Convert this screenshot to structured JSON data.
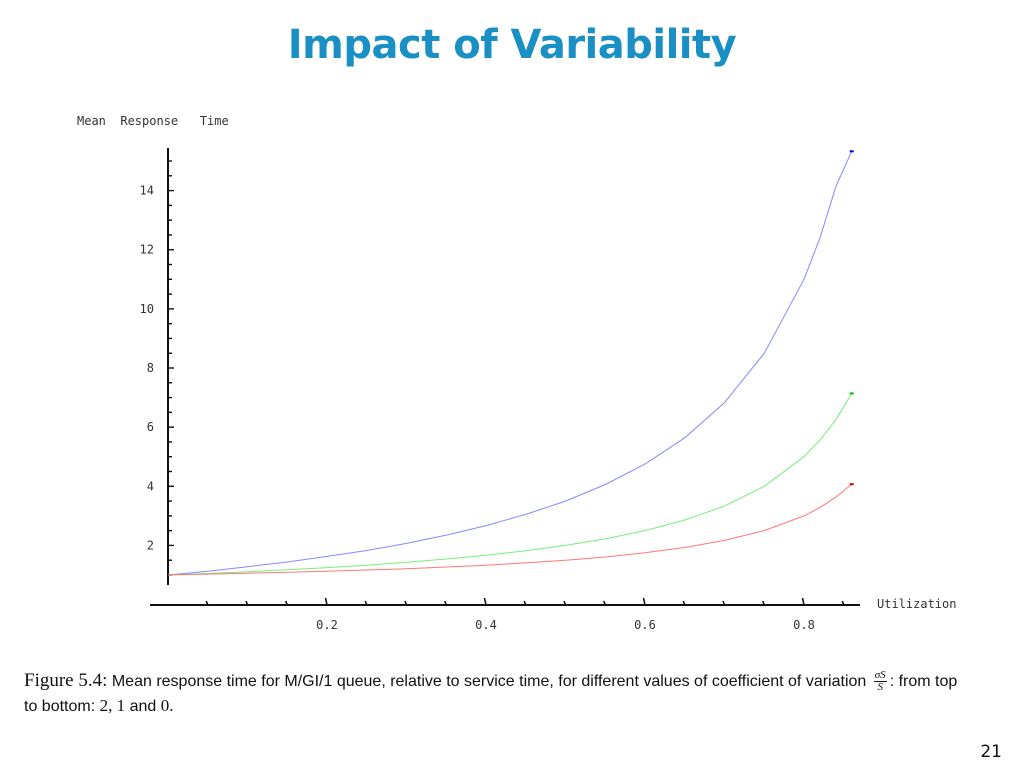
{
  "slide": {
    "title": "Impact of Variability",
    "page_number": "21"
  },
  "caption": {
    "figure_label": "Figure 5.4:",
    "text_part1": "Mean response time for M/GI/1 queue, relative to service time, for different values of coefficient of variation",
    "frac_num": "σS",
    "frac_den": "S",
    "text_part2": ": from top to bottom:",
    "values": "2, 1",
    "and_word": "and",
    "last_value": "0."
  },
  "chart_data": {
    "type": "line",
    "xlabel": "Utilization",
    "ylabel": "Mean  Response   Time",
    "xlim": [
      0,
      0.9
    ],
    "ylim": [
      0,
      15.5
    ],
    "x_ticks": [
      0.2,
      0.4,
      0.6,
      0.8
    ],
    "x_tick_labels": [
      "0.2",
      "0.4",
      "0.6",
      "0.8"
    ],
    "y_ticks": [
      2,
      4,
      6,
      8,
      10,
      12,
      14
    ],
    "y_tick_labels": [
      "2",
      "4",
      "6",
      "8",
      "10",
      "12",
      "14"
    ],
    "x": [
      0,
      0.05,
      0.1,
      0.15,
      0.2,
      0.25,
      0.3,
      0.35,
      0.4,
      0.45,
      0.5,
      0.55,
      0.6,
      0.65,
      0.7,
      0.75,
      0.8,
      0.82,
      0.84,
      0.86
    ],
    "series": [
      {
        "values": [
          1.0,
          1.13,
          1.28,
          1.44,
          1.63,
          1.83,
          2.07,
          2.35,
          2.67,
          3.05,
          3.5,
          4.06,
          4.75,
          5.64,
          6.83,
          8.5,
          11.0,
          12.39,
          14.13,
          15.33
        ],
        "color": "#8888ff"
      },
      {
        "values": [
          1.0,
          1.05,
          1.11,
          1.18,
          1.25,
          1.33,
          1.43,
          1.54,
          1.67,
          1.82,
          2.0,
          2.22,
          2.5,
          2.86,
          3.33,
          4.0,
          5.0,
          5.56,
          6.25,
          7.14
        ],
        "color": "#77ee77"
      },
      {
        "values": [
          1.0,
          1.03,
          1.06,
          1.09,
          1.13,
          1.17,
          1.21,
          1.27,
          1.33,
          1.41,
          1.5,
          1.61,
          1.75,
          1.93,
          2.17,
          2.5,
          3.0,
          3.28,
          3.63,
          4.07
        ],
        "color": "#ff7777"
      }
    ]
  }
}
